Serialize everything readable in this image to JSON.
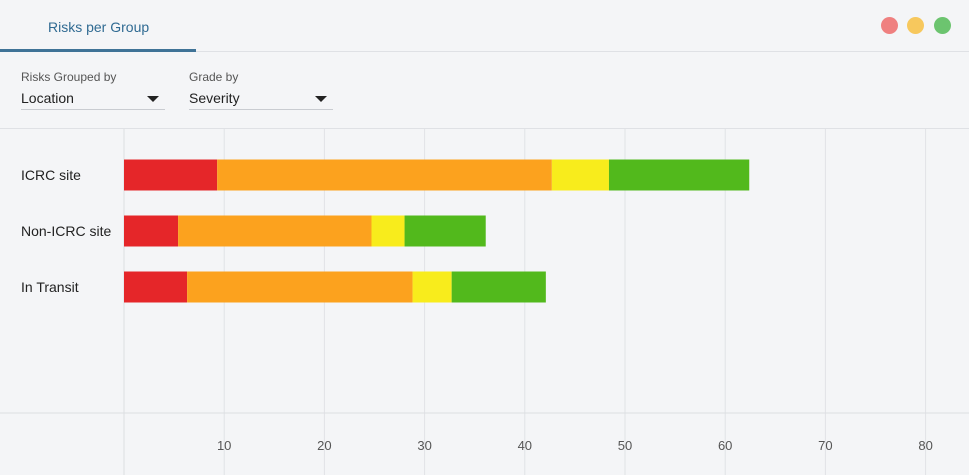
{
  "tab": {
    "label": "Risks per Group"
  },
  "window_controls": {
    "colors": [
      "#ef8080",
      "#f7c85d",
      "#6cc46f"
    ]
  },
  "filters": {
    "group": {
      "label": "Risks Grouped by",
      "value": "Location"
    },
    "grade": {
      "label": "Grade by",
      "value": "Severity"
    }
  },
  "chart_data": {
    "type": "bar",
    "orientation": "horizontal",
    "stacked": true,
    "categories": [
      "ICRC site",
      "Non-ICRC site",
      "In Transit"
    ],
    "series": [
      {
        "color": "#e52629",
        "values": [
          9.3,
          5.4,
          6.3
        ]
      },
      {
        "color": "#fca21e",
        "values": [
          33.4,
          19.3,
          22.5
        ]
      },
      {
        "color": "#f8ec1c",
        "values": [
          5.7,
          3.3,
          3.9
        ]
      },
      {
        "color": "#52b91c",
        "values": [
          14.0,
          8.1,
          9.4
        ]
      }
    ],
    "xticks": [
      10,
      20,
      30,
      40,
      50,
      60,
      70,
      80
    ],
    "xlim": [
      0,
      84
    ],
    "grid": true,
    "legend": "none"
  }
}
